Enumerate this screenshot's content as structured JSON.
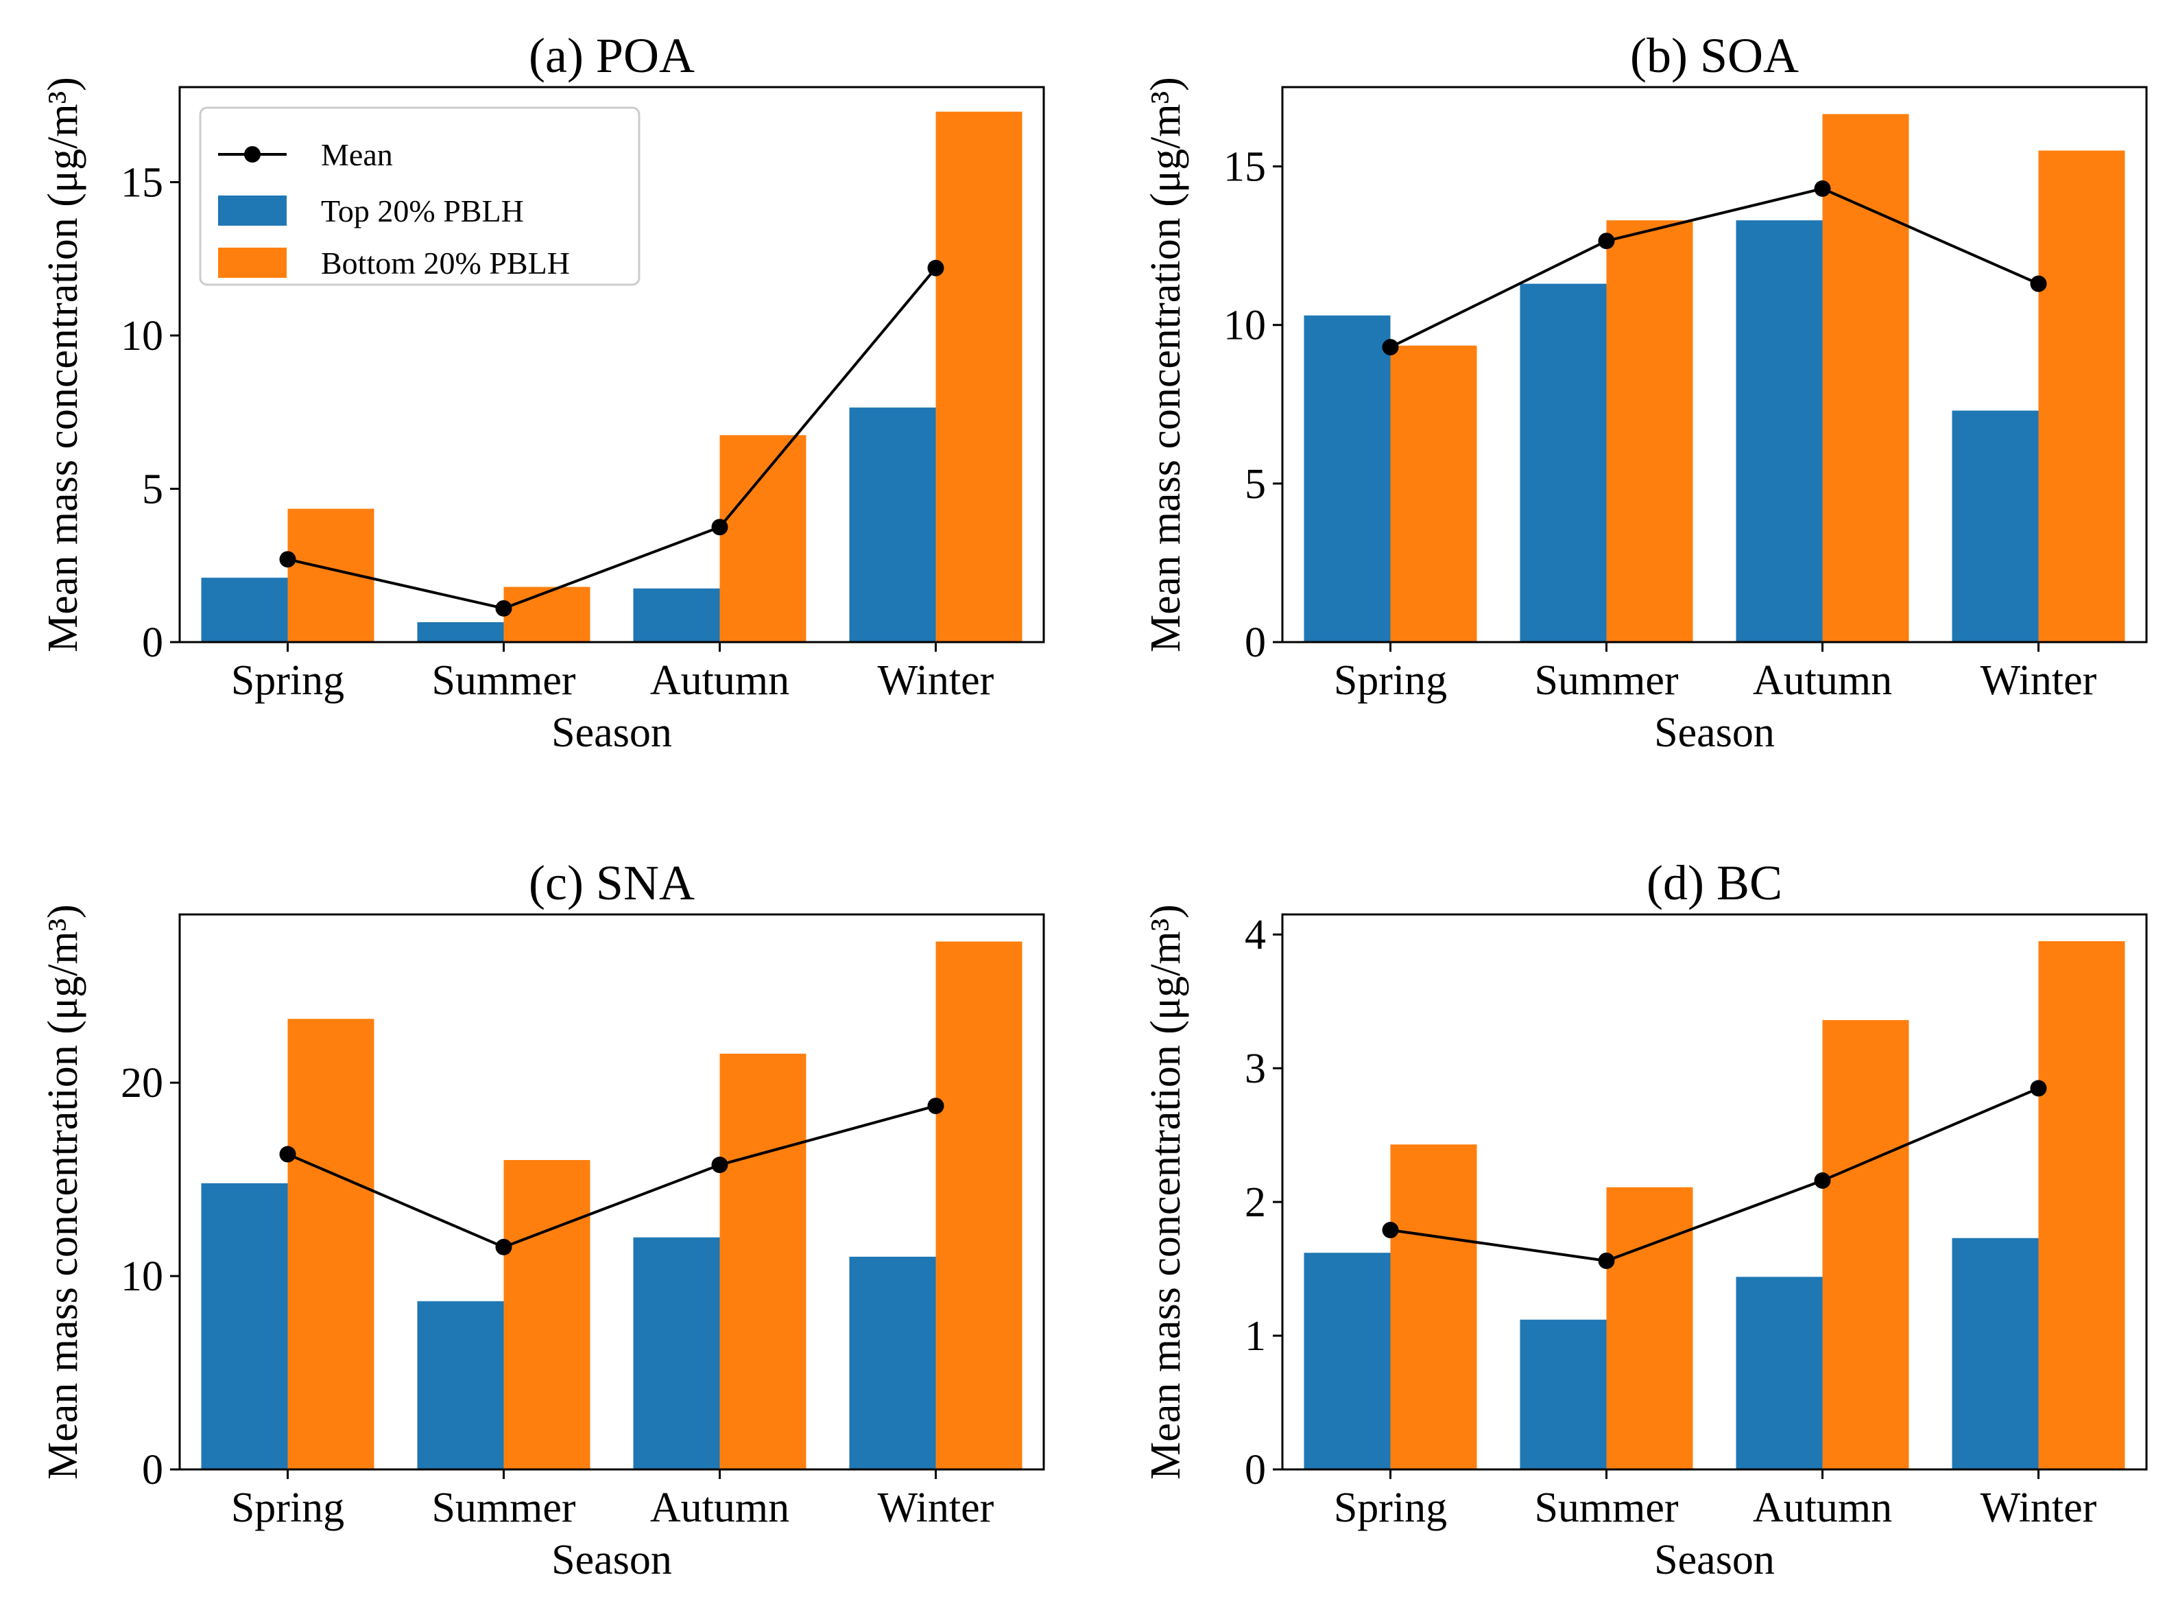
{
  "chart_data": [
    {
      "type": "bar",
      "title": "(a) POA",
      "categories": [
        "Spring",
        "Summer",
        "Autumn",
        "Winter"
      ],
      "xlabel": "Season",
      "ylabel": "Mean mass concentration (μg/m³)",
      "ylim": [
        0,
        18.1
      ],
      "yticks": [
        0,
        5,
        10,
        15
      ],
      "series": [
        {
          "name": "Top 20% PBLH",
          "kind": "bar",
          "color": "#1f77b4",
          "values": [
            2.1,
            0.65,
            1.75,
            7.65
          ]
        },
        {
          "name": "Bottom 20% PBLH",
          "kind": "bar",
          "color": "#ff7f0e",
          "values": [
            4.35,
            1.8,
            6.75,
            17.3
          ]
        },
        {
          "name": "Mean",
          "kind": "line",
          "color": "#000000",
          "values": [
            2.7,
            1.1,
            3.75,
            12.2
          ]
        }
      ],
      "legend": {
        "location": "upper-left",
        "entries": [
          "Mean",
          "Top 20% PBLH",
          "Bottom 20% PBLH"
        ]
      }
    },
    {
      "type": "bar",
      "title": "(b) SOA",
      "categories": [
        "Spring",
        "Summer",
        "Autumn",
        "Winter"
      ],
      "xlabel": "Season",
      "ylabel": "Mean mass concentration (μg/m³)",
      "ylim": [
        0,
        17.5
      ],
      "yticks": [
        0,
        5,
        10,
        15
      ],
      "series": [
        {
          "name": "Top 20% PBLH",
          "kind": "bar",
          "color": "#1f77b4",
          "values": [
            10.3,
            11.3,
            13.3,
            7.3
          ]
        },
        {
          "name": "Bottom 20% PBLH",
          "kind": "bar",
          "color": "#ff7f0e",
          "values": [
            9.35,
            13.3,
            16.65,
            15.5
          ]
        },
        {
          "name": "Mean",
          "kind": "line",
          "color": "#000000",
          "values": [
            9.3,
            12.65,
            14.3,
            11.3
          ]
        }
      ]
    },
    {
      "type": "bar",
      "title": "(c) SNA",
      "categories": [
        "Spring",
        "Summer",
        "Autumn",
        "Winter"
      ],
      "xlabel": "Season",
      "ylabel": "Mean mass concentration (μg/m³)",
      "ylim": [
        0,
        28.7
      ],
      "yticks": [
        0,
        10,
        20
      ],
      "series": [
        {
          "name": "Top 20% PBLH",
          "kind": "bar",
          "color": "#1f77b4",
          "values": [
            14.8,
            8.7,
            12.0,
            11.0
          ]
        },
        {
          "name": "Bottom 20% PBLH",
          "kind": "bar",
          "color": "#ff7f0e",
          "values": [
            23.3,
            16.0,
            21.5,
            27.3
          ]
        },
        {
          "name": "Mean",
          "kind": "line",
          "color": "#000000",
          "values": [
            16.3,
            11.5,
            15.75,
            18.8
          ]
        }
      ]
    },
    {
      "type": "bar",
      "title": "(d) BC",
      "categories": [
        "Spring",
        "Summer",
        "Autumn",
        "Winter"
      ],
      "xlabel": "Season",
      "ylabel": "Mean mass concentration (μg/m³)",
      "ylim": [
        0,
        4.15
      ],
      "yticks": [
        0,
        1,
        2,
        3,
        4
      ],
      "series": [
        {
          "name": "Top 20% PBLH",
          "kind": "bar",
          "color": "#1f77b4",
          "values": [
            1.62,
            1.12,
            1.44,
            1.73
          ]
        },
        {
          "name": "Bottom 20% PBLH",
          "kind": "bar",
          "color": "#ff7f0e",
          "values": [
            2.43,
            2.11,
            3.36,
            3.95
          ]
        },
        {
          "name": "Mean",
          "kind": "line",
          "color": "#000000",
          "values": [
            1.79,
            1.56,
            2.16,
            2.85
          ]
        }
      ]
    }
  ]
}
